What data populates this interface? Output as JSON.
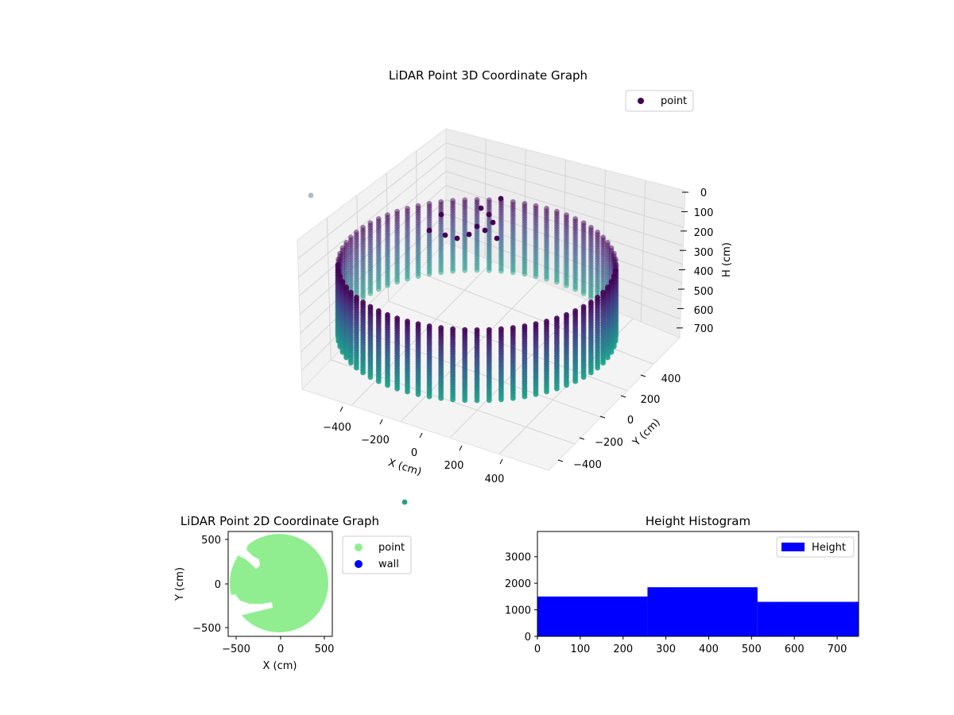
{
  "chart_data": [
    {
      "type": "scatter",
      "projection": "3d",
      "title": "LiDAR Point 3D Coordinate Graph",
      "xlabel": "X (cm)",
      "ylabel": "Y (cm)",
      "zlabel": "H (cm)",
      "legend": {
        "placement": "top-right",
        "entries": [
          "point"
        ]
      },
      "xticks": [
        "−400",
        "−200",
        "0",
        "200",
        "400"
      ],
      "yticks": [
        "−400",
        "−200",
        "0",
        "200",
        "400"
      ],
      "zticks": [
        "0",
        "100",
        "200",
        "300",
        "400",
        "500",
        "600",
        "700"
      ],
      "xlim": [
        -550,
        550
      ],
      "ylim": [
        -550,
        550
      ],
      "zlim": [
        760,
        0
      ],
      "zaxis_inverted": true,
      "grid": true,
      "colormap": "viridis (by height)",
      "shape": "cylindrical wall of points",
      "wall_radius": 480,
      "height_range": [
        0,
        700
      ],
      "stray_points_approx": [
        {
          "x": 400,
          "y": -460,
          "h": 30
        },
        {
          "x": -400,
          "y": 460,
          "h": 300
        }
      ]
    },
    {
      "type": "scatter",
      "title": "LiDAR Point 2D Coordinate Graph",
      "xlabel": "X (cm)",
      "ylabel": "Y (cm)",
      "xticks": [
        "−500",
        "0",
        "500"
      ],
      "yticks": [
        "500",
        "0",
        "−500"
      ],
      "xlim": [
        -600,
        600
      ],
      "ylim": [
        -600,
        600
      ],
      "legend": {
        "placement": "outside-right",
        "entries": [
          "point",
          "wall"
        ]
      },
      "series": [
        {
          "name": "point",
          "color": "#90ee90",
          "region": "filled disk, radius ~540, centered near (-20, 0)"
        },
        {
          "name": "wall",
          "color": "#0000ff"
        }
      ]
    },
    {
      "type": "bar",
      "title": "Height Histogram",
      "legend": {
        "placement": "top-right",
        "entries": [
          "Height"
        ]
      },
      "series": [
        {
          "name": "Height",
          "color": "#0000ff",
          "bins": [
            {
              "from": 0,
              "to": 257,
              "count": 1500
            },
            {
              "from": 257,
              "to": 514,
              "count": 1850
            },
            {
              "from": 514,
              "to": 750,
              "count": 1300
            }
          ]
        }
      ],
      "xticks": [
        "0",
        "100",
        "200",
        "300",
        "400",
        "500",
        "600",
        "700"
      ],
      "yticks": [
        "0",
        "1000",
        "2000",
        "3000"
      ],
      "xlim": [
        0,
        750
      ],
      "ylim": [
        0,
        3950
      ]
    }
  ],
  "colors": {
    "point_legend_3d": "#440154",
    "pane": "#f2f2f2",
    "grid": "#cccccc",
    "green": "#90ee90",
    "blue": "#0000ff"
  }
}
